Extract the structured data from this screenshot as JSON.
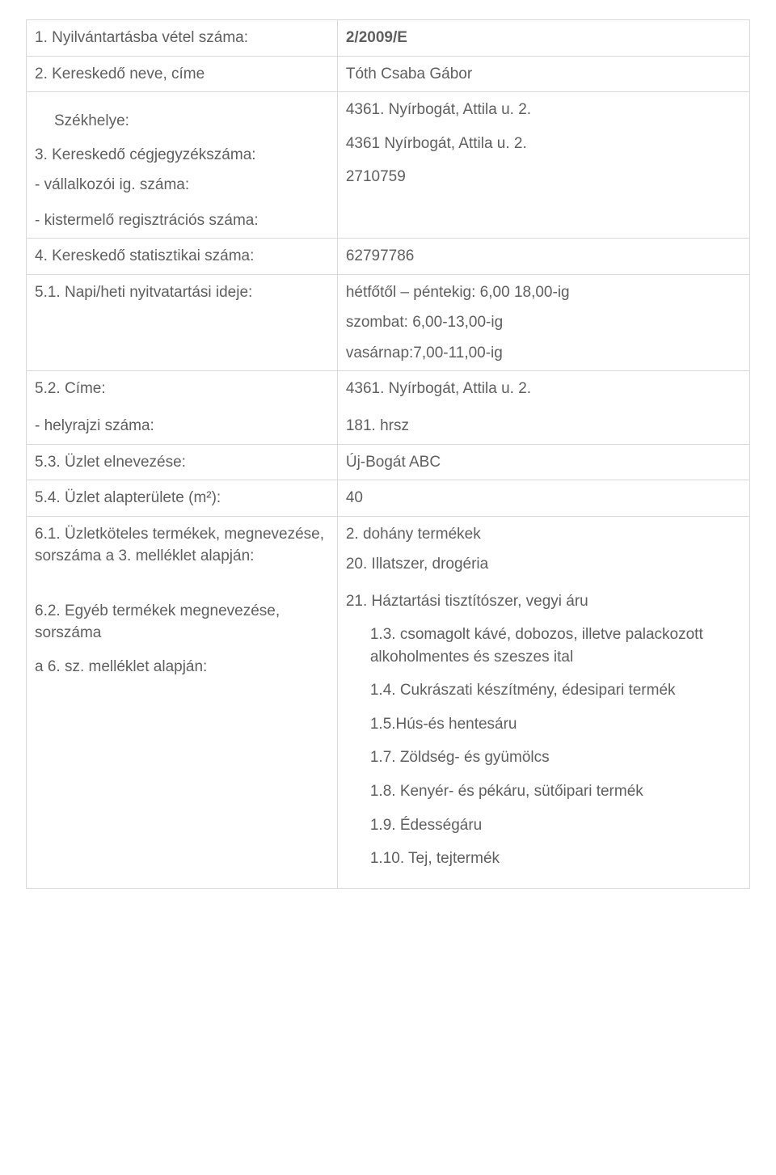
{
  "rows": {
    "r1_label": "1. Nyilvántartásba vétel száma:",
    "r1_value": "2/2009/E",
    "r2_label": "2. Kereskedő neve, címe",
    "r2_value": "Tóth Csaba Gábor",
    "r3_left": {
      "seat_indent": "Székhelye:",
      "reg_line": "3. Kereskedő cégjegyzékszáma:",
      "dash1": "- vállalkozói ig. száma:",
      "dash2": "- kistermelő regisztrációs száma:"
    },
    "r3_right": {
      "addr1": "4361. Nyírbogát, Attila u. 2.",
      "addr2": "4361 Nyírbogát, Attila u. 2.",
      "num": "2710759"
    },
    "r4_label": "4. Kereskedő statisztikai száma:",
    "r4_value": "62797786",
    "r5_label": "5.1. Napi/heti nyitvatartási ideje:",
    "r5_right": {
      "l1": "hétfőtől – péntekig: 6,00 18,00-ig",
      "l2": "szombat: 6,00-13,00-ig",
      "l3": "vasárnap:7,00-11,00-ig"
    },
    "r6_left": {
      "l1": "5.2. Címe:",
      "l2": "- helyrajzi száma:"
    },
    "r6_right": {
      "l1": "4361. Nyírbogát, Attila u. 2.",
      "l2": "181. hrsz"
    },
    "r7_label": "5.3. Üzlet elnevezése:",
    "r7_value": "Új-Bogát ABC",
    "r8_label": "5.4. Üzlet alapterülete (m²):",
    "r8_value": "40",
    "r9_left": {
      "l1": "6.1. Üzletköteles termékek, megnevezése, sorszáma a 3. melléklet alapján:",
      "l2": "6.2. Egyéb termékek megnevezése, sorszáma",
      "l3": "a 6. sz. melléklet alapján:"
    },
    "r9_right": {
      "p1": "2. dohány termékek",
      "p2": "20. Illatszer, drogéria",
      "p3": "21. Háztartási tisztítószer, vegyi áru",
      "items": [
        "1.3. csomagolt kávé, dobozos, illetve palackozott alkoholmentes és szeszes ital",
        "1.4. Cukrászati készítmény, édesipari termék",
        "1.5.Hús-és hentesáru",
        "1.7. Zöldség- és gyümölcs",
        "1.8. Kenyér- és pékáru, sütőipari termék",
        "1.9. Édességáru",
        "1.10. Tej, tejtermék"
      ]
    }
  }
}
